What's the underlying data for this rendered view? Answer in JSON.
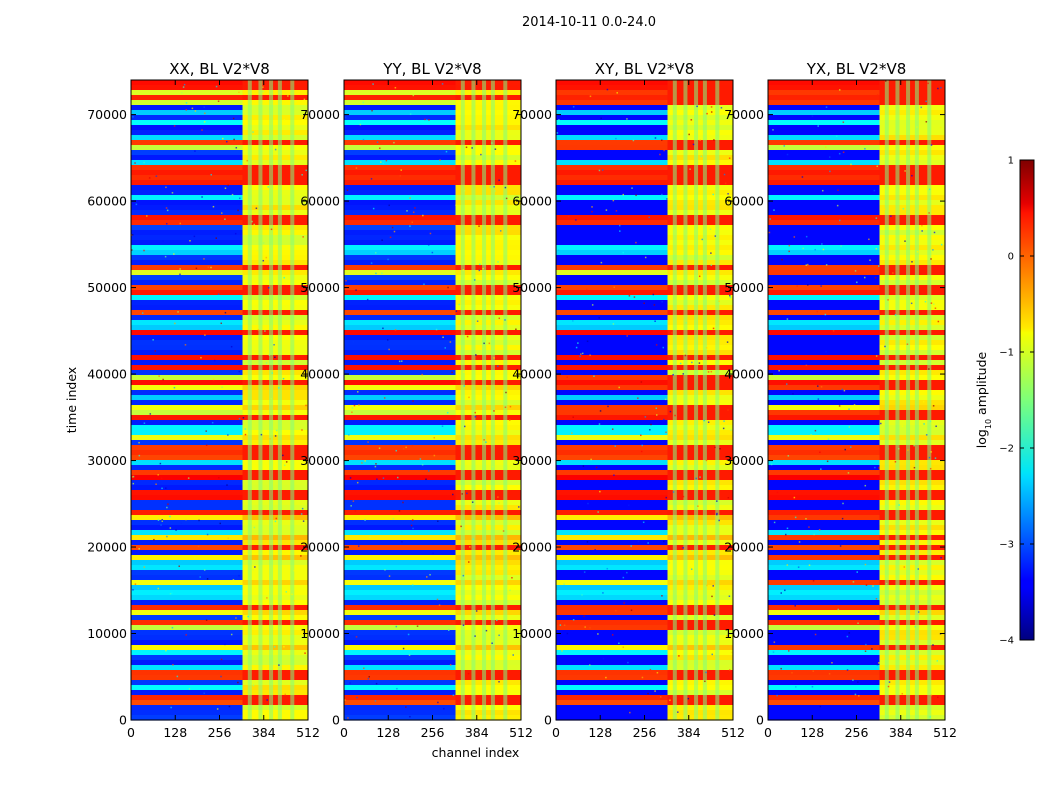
{
  "figure_title": "2014-10-11 0.0-24.0",
  "chart_data": {
    "type": "heatmap",
    "title": "2014-10-11 0.0-24.0",
    "xlabel": "channel index",
    "ylabel": "time index",
    "xlim": [
      0,
      512
    ],
    "ylim": [
      0,
      74000
    ],
    "x_ticks": [
      0,
      128,
      256,
      384,
      512
    ],
    "y_ticks": [
      0,
      10000,
      20000,
      30000,
      40000,
      50000,
      60000,
      70000
    ],
    "panels": [
      {
        "title": "XX, BL V2*V8",
        "show_ylabel": true,
        "show_xlabel": false
      },
      {
        "title": "YY, BL V2*V8",
        "show_ylabel": false,
        "show_xlabel": true
      },
      {
        "title": "XY, BL V2*V8",
        "show_ylabel": false,
        "show_xlabel": false
      },
      {
        "title": "YX, BL V2*V8",
        "show_ylabel": false,
        "show_xlabel": false
      }
    ],
    "colorbar": {
      "label": "log10 amplitude",
      "label_base": "log",
      "label_sub": "10",
      "label_rest": " amplitude",
      "range": [
        -4,
        1
      ],
      "ticks": [
        1,
        0,
        -1,
        -2,
        -3,
        -4
      ],
      "colormap": "jet"
    }
  }
}
